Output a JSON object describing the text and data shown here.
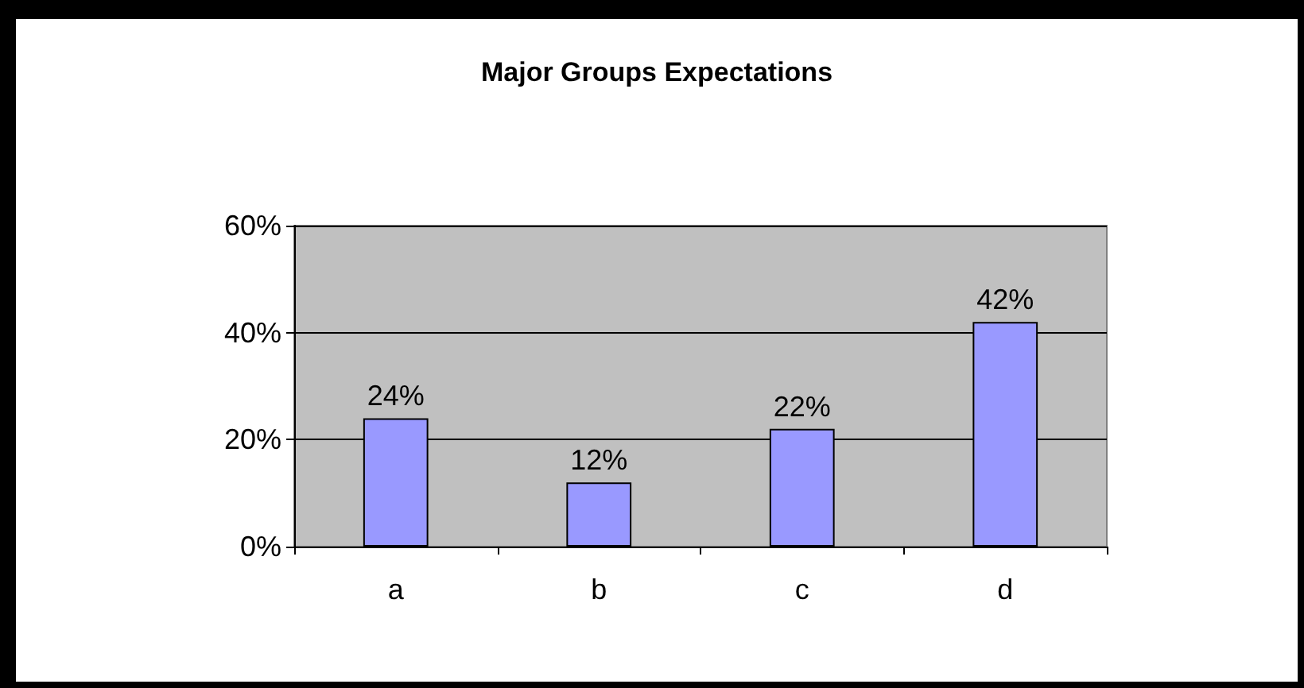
{
  "chart_data": {
    "type": "bar",
    "title": "Major Groups Expectations",
    "categories": [
      "a",
      "b",
      "c",
      "d"
    ],
    "values": [
      24,
      12,
      22,
      42
    ],
    "value_labels": [
      "24%",
      "12%",
      "22%",
      "42%"
    ],
    "color": "#9999ff",
    "ylim": [
      0,
      60
    ],
    "yticks": [
      {
        "value": 0,
        "label": "0%"
      },
      {
        "value": 20,
        "label": "20%"
      },
      {
        "value": 40,
        "label": "40%"
      },
      {
        "value": 60,
        "label": "60%"
      }
    ],
    "grid": "y"
  }
}
